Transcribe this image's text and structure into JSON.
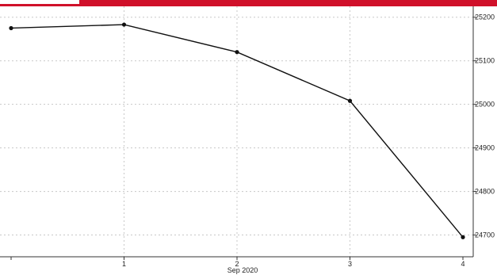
{
  "colors": {
    "accent_bar": "#d0102a",
    "line": "#111111",
    "grid": "#c8c8c8",
    "axis": "#333333"
  },
  "chart_data": {
    "type": "line",
    "x": [
      0,
      1,
      2,
      3,
      4
    ],
    "x_tick_labels": [
      "",
      "1",
      "2",
      "3",
      "4"
    ],
    "x_sublabel": "Sep 2020",
    "values": [
      25175,
      25183,
      25120,
      25008,
      24695
    ],
    "ylim": [
      24650,
      25225
    ],
    "y_ticks": [
      24700,
      24800,
      24900,
      25000,
      25100,
      25200
    ],
    "y_tick_labels": [
      "24700",
      "24800",
      "24900",
      "25000",
      "25100",
      "25200"
    ],
    "y_axis_position": "right",
    "grid": true,
    "markers": true
  }
}
